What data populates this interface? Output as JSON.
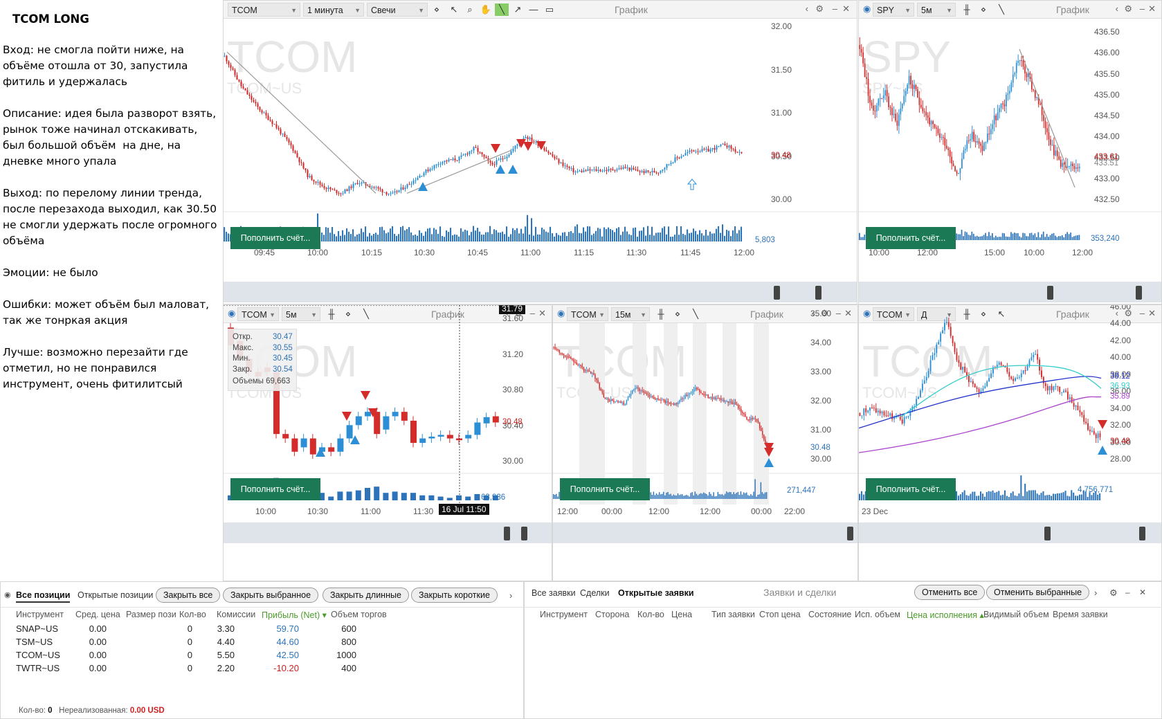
{
  "notes": {
    "title": "TCOM LONG",
    "paragraphs": [
      "Вход: не смогла пойти ниже, на объёме отошла от 30, запустила фитиль и удержалась",
      "Описание: идея была разворот взять, рынок тоже начинал отскакивать, был большой объём  на дне, на дневке много упала",
      "Выход: по перелому линии тренда, после перезахода выходил, как 30.50 не смогли удержать после огромного объёма",
      "Эмоции: не было",
      "Ошибки: может объём был маловат, так же тонркая акция",
      "Лучше: возможно перезайти где отметил, но не понравился инструмент, очень фитилитсый"
    ]
  },
  "common": {
    "graph_label": "График",
    "fund_button": "Пополнить счёт...",
    "up": "#2c8fd6",
    "down": "#d42b2b"
  },
  "p1": {
    "symbol": "TCOM",
    "timeframe": "1 минута",
    "charttype": "Свечи",
    "wm1": "TCOM",
    "wm2": "TCOM~US",
    "prices": [
      "32.00",
      "31.50",
      "31.00",
      "30.50",
      "30.00"
    ],
    "last": "30.48",
    "vol": "5,803",
    "times": [
      "09:45",
      "10:00",
      "10:15",
      "10:30",
      "10:45",
      "11:00",
      "11:15",
      "11:30",
      "11:45",
      "12:00"
    ]
  },
  "p2": {
    "symbol": "SPY",
    "timeframe": "5м",
    "wm1": "SPY",
    "wm2": "SPY~US",
    "prices": [
      "436.50",
      "436.00",
      "435.50",
      "435.00",
      "434.50",
      "434.00",
      "433.50",
      "433.00",
      "432.50"
    ],
    "last": "433.61",
    "last2": "433.51",
    "vol": "353,240",
    "times": [
      "10:00",
      "12:00",
      "15:00",
      "10:00",
      "12:00"
    ]
  },
  "p3": {
    "symbol": "TCOM",
    "timeframe": "5м",
    "wm1": "TCOM",
    "wm2": "TCOM~US",
    "prices": [
      "31.60",
      "31.20",
      "30.80",
      "30.40",
      "30.00"
    ],
    "last": "30.48",
    "cross": "31.79",
    "vol": "63,936",
    "times": [
      "10:00",
      "10:30",
      "11:00",
      "11:30"
    ],
    "cursor_time": "16 Jul 11:50",
    "ohlc": {
      "o_l": "Откр.",
      "o": "30.47",
      "h_l": "Макс.",
      "h": "30.55",
      "l_l": "Мин.",
      "l": "30.45",
      "c_l": "Закр.",
      "c": "30.54",
      "v_l": "Объемы",
      "v": "69,663"
    }
  },
  "p4": {
    "symbol": "TCOM",
    "timeframe": "15м",
    "wm1": "TCOM",
    "wm2": "TCOM~US",
    "prices": [
      "35.00",
      "34.00",
      "33.00",
      "32.00",
      "31.00",
      "30.00"
    ],
    "last": "30.48",
    "vol": "271,447",
    "times": [
      "12:00",
      "00:00",
      "12:00",
      "12:00",
      "00:00",
      "22:00"
    ]
  },
  "p5": {
    "symbol": "TCOM",
    "timeframe": "Д",
    "wm1": "TCOM",
    "wm2": "TCOM~US",
    "prices": [
      "46.00",
      "44.00",
      "42.00",
      "40.00",
      "38.00",
      "36.00",
      "34.00",
      "32.00",
      "30.00",
      "28.00"
    ],
    "last": "30.48",
    "vol": "4,756,771",
    "ma": [
      {
        "v": "38.12",
        "c": "#2233cc"
      },
      {
        "v": "36.93",
        "c": "#33cccc"
      },
      {
        "v": "35.89",
        "c": "#aa44cc"
      }
    ],
    "times": [
      "23 Dec"
    ]
  },
  "positions": {
    "tabs": [
      "Все позиции",
      "Открытые позиции"
    ],
    "buttons": [
      "Закрыть все",
      "Закрыть выбранное",
      "Закрыть длинные",
      "Закрыть короткие"
    ],
    "headers": [
      "Инструмент",
      "Сред. цена",
      "Размер пози",
      "Кол-во",
      "Комиссии",
      "Прибыль (Net)",
      "Объем торгов"
    ],
    "rows": [
      {
        "sym": "SNAP~US",
        "avg": "0.00",
        "qty": "0",
        "com": "3.30",
        "pnl": "59.70",
        "vol": "600"
      },
      {
        "sym": "TSM~US",
        "avg": "0.00",
        "qty": "0",
        "com": "4.40",
        "pnl": "44.60",
        "vol": "800"
      },
      {
        "sym": "TCOM~US",
        "avg": "0.00",
        "qty": "0",
        "com": "5.50",
        "pnl": "42.50",
        "vol": "1000"
      },
      {
        "sym": "TWTR~US",
        "avg": "0.00",
        "qty": "0",
        "com": "2.20",
        "pnl": "-10.20",
        "vol": "400"
      }
    ],
    "footer_qty_label": "Кол-во:",
    "footer_qty": "0",
    "footer_unreal_label": "Нереализованная:",
    "footer_unreal": "0.00 USD"
  },
  "orders": {
    "tabs": [
      "Все заявки",
      "Сделки",
      "Открытые заявки"
    ],
    "title": "Заявки и сделки",
    "buttons": [
      "Отменить все",
      "Отменить выбранные"
    ],
    "headers": [
      "Инструмент",
      "Сторона",
      "Кол-во",
      "Цена",
      "Тип заявки",
      "Стоп цена",
      "Состояние",
      "Исп. объем",
      "Цена исполнения",
      "Видимый объем",
      "Время заявки"
    ]
  }
}
